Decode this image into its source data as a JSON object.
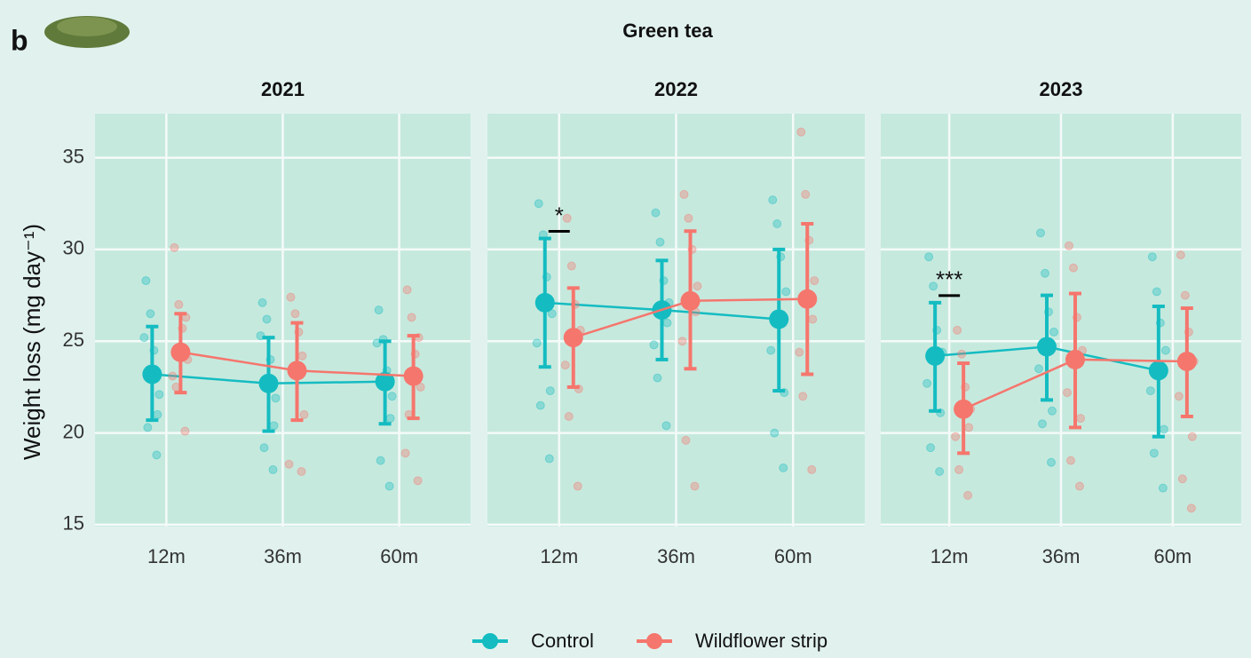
{
  "label": "b",
  "title": "Green tea",
  "chart_data": [
    {
      "type": "line",
      "title": "2021",
      "y_label": "Weight loss (mg day⁻¹)",
      "categories": [
        "12m",
        "36m",
        "60m"
      ],
      "ylim": [
        14.9,
        37.4
      ],
      "yticks": [
        15,
        20,
        25,
        30,
        35
      ],
      "grid": true,
      "series": [
        {
          "name": "Control",
          "color": "#14bcc1",
          "values": [
            23.2,
            22.7,
            22.8
          ],
          "error_low": [
            20.7,
            20.1,
            20.5
          ],
          "error_high": [
            25.8,
            25.2,
            25.0
          ],
          "points": [
            [
              28.3,
              18.8,
              26.5,
              22.1,
              20.3,
              24.5,
              25.2,
              21.0
            ],
            [
              27.1,
              18.0,
              26.2,
              21.9,
              19.2,
              24.0,
              25.3,
              20.4
            ],
            [
              26.7,
              17.1,
              25.1,
              22.0,
              18.5,
              23.4,
              24.9,
              20.8
            ]
          ]
        },
        {
          "name": "Wildflower strip",
          "color": "#f5766d",
          "values": [
            24.4,
            23.4,
            23.1
          ],
          "error_low": [
            22.2,
            20.7,
            20.8
          ],
          "error_high": [
            26.5,
            26.0,
            25.3
          ],
          "points": [
            [
              30.1,
              20.1,
              27.0,
              24.0,
              22.5,
              25.7,
              23.1,
              26.3
            ],
            [
              27.4,
              17.9,
              26.5,
              21.0,
              23.5,
              25.5,
              18.3,
              24.2
            ],
            [
              27.8,
              17.4,
              26.3,
              22.5,
              21.0,
              24.3,
              18.9,
              25.2
            ]
          ]
        }
      ],
      "annotations": []
    },
    {
      "type": "line",
      "title": "2022",
      "categories": [
        "12m",
        "36m",
        "60m"
      ],
      "ylim": [
        14.9,
        37.4
      ],
      "yticks": [
        15,
        20,
        25,
        30,
        35
      ],
      "grid": true,
      "series": [
        {
          "color": "#14bcc1",
          "values": [
            27.1,
            26.7,
            26.2
          ],
          "error_low": [
            23.6,
            24.0,
            22.3
          ],
          "error_high": [
            30.6,
            29.4,
            30.0
          ],
          "points": [
            [
              32.5,
              18.6,
              30.8,
              26.5,
              21.5,
              28.5,
              24.9,
              22.3
            ],
            [
              32.0,
              20.4,
              30.4,
              27.1,
              23.0,
              28.3,
              24.8,
              26.0
            ],
            [
              32.7,
              18.1,
              31.4,
              27.7,
              20.0,
              29.6,
              24.5,
              22.2
            ]
          ]
        },
        {
          "color": "#f5766d",
          "values": [
            25.2,
            27.2,
            27.3
          ],
          "error_low": [
            22.5,
            23.5,
            23.2
          ],
          "error_high": [
            27.9,
            31.0,
            31.4
          ],
          "points": [
            [
              31.7,
              17.1,
              29.1,
              25.6,
              20.9,
              27.0,
              23.7,
              22.4
            ],
            [
              33.0,
              17.1,
              31.7,
              28.0,
              19.6,
              30.0,
              25.0,
              26.6
            ],
            [
              36.4,
              18.0,
              33.0,
              28.3,
              22.0,
              30.5,
              24.4,
              26.2
            ]
          ]
        }
      ],
      "annotations": [
        {
          "text": "*",
          "x": "12m"
        }
      ]
    },
    {
      "type": "line",
      "title": "2023",
      "categories": [
        "12m",
        "36m",
        "60m"
      ],
      "ylim": [
        14.9,
        37.4
      ],
      "yticks": [
        15,
        20,
        25,
        30,
        35
      ],
      "grid": true,
      "series": [
        {
          "color": "#14bcc1",
          "values": [
            24.2,
            24.7,
            23.4
          ],
          "error_low": [
            21.2,
            21.8,
            19.8
          ],
          "error_high": [
            27.1,
            27.5,
            26.9
          ],
          "points": [
            [
              29.6,
              17.9,
              28.0,
              24.4,
              19.2,
              25.6,
              22.7,
              21.1
            ],
            [
              30.9,
              18.4,
              28.7,
              25.5,
              20.5,
              26.6,
              23.5,
              21.2
            ],
            [
              29.6,
              17.0,
              27.7,
              24.5,
              18.9,
              26.0,
              22.3,
              20.2
            ]
          ]
        },
        {
          "color": "#f5766d",
          "values": [
            21.3,
            24.0,
            23.9
          ],
          "error_low": [
            18.9,
            20.3,
            20.9
          ],
          "error_high": [
            23.8,
            27.6,
            26.8
          ],
          "points": [
            [
              25.6,
              16.6,
              24.3,
              21.3,
              18.0,
              22.5,
              19.8,
              20.3
            ],
            [
              30.2,
              17.1,
              29.0,
              24.5,
              18.5,
              26.3,
              22.2,
              20.8
            ],
            [
              29.7,
              15.9,
              27.5,
              23.9,
              17.5,
              25.5,
              22.0,
              19.8
            ]
          ]
        }
      ],
      "annotations": [
        {
          "text": "***",
          "x": "12m"
        }
      ]
    }
  ]
}
